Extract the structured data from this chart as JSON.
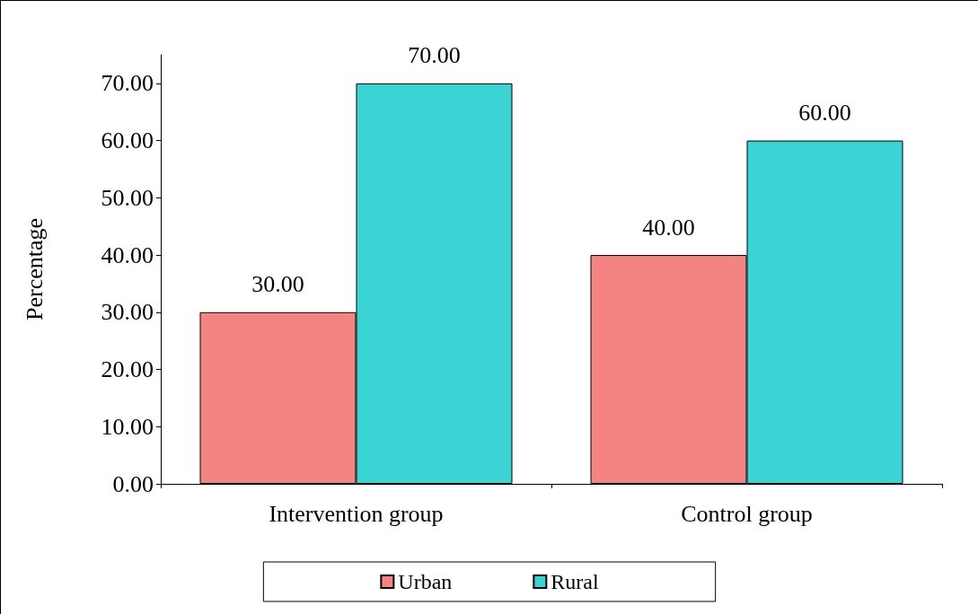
{
  "chart_data": {
    "type": "bar",
    "ylabel": "Percentage",
    "categories": [
      "Intervention group",
      "Control group"
    ],
    "series": [
      {
        "name": "Urban",
        "color": "#f48481",
        "values": [
          30,
          40
        ],
        "value_labels": [
          "30.00",
          "40.00"
        ]
      },
      {
        "name": "Rural",
        "color": "#3ad4d4",
        "values": [
          70,
          60
        ],
        "value_labels": [
          "70.00",
          "60.00"
        ]
      }
    ],
    "ylim": [
      0,
      75
    ],
    "yticks": [
      {
        "value": 0,
        "label": "0.00"
      },
      {
        "value": 10,
        "label": "10.00"
      },
      {
        "value": 20,
        "label": "20.00"
      },
      {
        "value": 30,
        "label": "30.00"
      },
      {
        "value": 40,
        "label": "40.00"
      },
      {
        "value": 50,
        "label": "50.00"
      },
      {
        "value": 60,
        "label": "60.00"
      },
      {
        "value": 70,
        "label": "70.00"
      }
    ],
    "grid": false,
    "legend": "bottom"
  }
}
